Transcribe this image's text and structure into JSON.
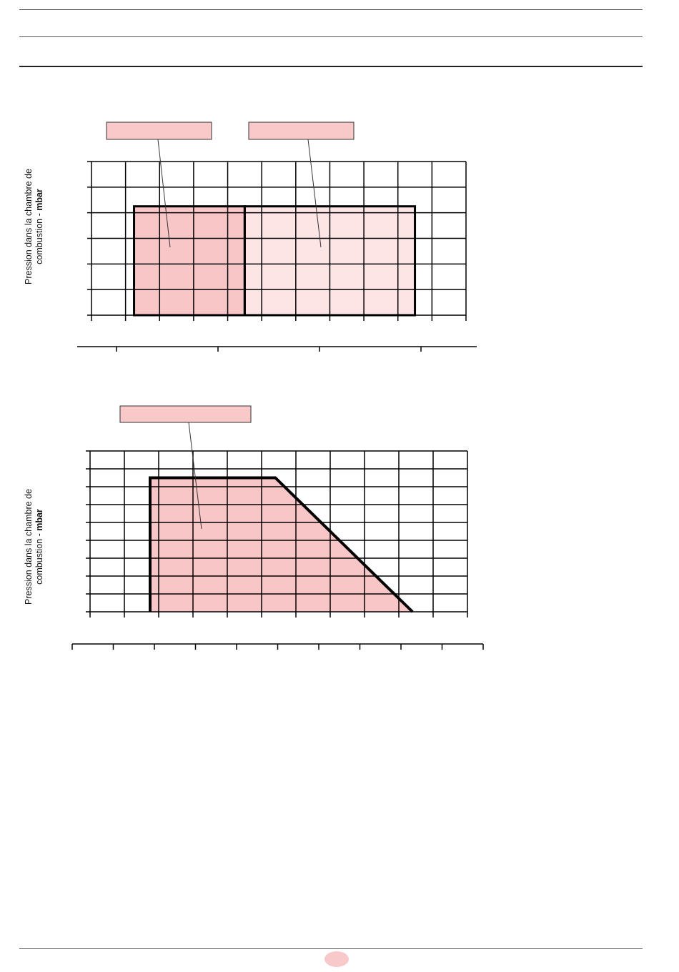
{
  "page": {
    "rules_top": 3,
    "page_badge_color": "#f7c9ca"
  },
  "colors": {
    "zone_dark": "#f9c6c7",
    "zone_light": "#fde4e5",
    "callout_fill": "#f9c9ca",
    "grid": "#000000",
    "outline": "#000000"
  },
  "chart_data": [
    {
      "type": "area",
      "title": "",
      "ylabel_text": "Pression dans la chambre de",
      "ylabel_line2": "combustion - ",
      "ylabel_unit": "mbar",
      "xlabel": "",
      "grid": true,
      "grid_cols": 11,
      "grid_rows": 6,
      "x_range": [
        0,
        11
      ],
      "y_range": [
        0,
        6
      ],
      "x_axis_ticks": 4,
      "zones": [
        {
          "name": "",
          "shade": "dark",
          "x0": 1.25,
          "x1": 4.5,
          "y_top": 4.25
        },
        {
          "name": "",
          "shade": "light",
          "x0": 4.5,
          "x1": 9.5,
          "y_top": 4.25
        }
      ],
      "callouts": 2
    },
    {
      "type": "area",
      "title": "",
      "ylabel_text": "Pression dans la chambre de",
      "ylabel_line2": "combustion - ",
      "ylabel_unit": "mbar",
      "xlabel": "",
      "grid": true,
      "grid_cols": 11,
      "grid_rows": 9,
      "x_range": [
        0,
        11
      ],
      "y_range": [
        0,
        9
      ],
      "x_axis_ticks": 10,
      "outline": [
        [
          1.75,
          0
        ],
        [
          1.75,
          7.5
        ],
        [
          5.4,
          7.5
        ],
        [
          9.4,
          0
        ]
      ],
      "callouts": 1
    }
  ]
}
